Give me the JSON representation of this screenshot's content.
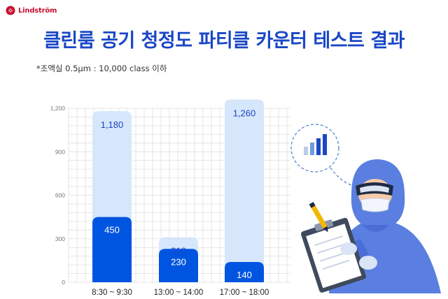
{
  "brand": {
    "name": "Lindström",
    "color": "#c8102e"
  },
  "title": "클린룸 공기 청정도 파티클 카운터 테스트 결과",
  "note": "*조액실 0.5μm : 10,000 class 이하",
  "colors": {
    "title": "#1a47c6",
    "bar_light": "#d6e6fb",
    "bar_dark": "#0055e0",
    "grid": "#e6e6e6"
  },
  "chart_data": {
    "type": "bar",
    "categories": [
      "8:30 ~ 9:30",
      "13:00 ~ 14:00",
      "17:00 ~ 18:00"
    ],
    "series": [
      {
        "values": [
          1180,
          310,
          1260
        ]
      },
      {
        "values": [
          450,
          230,
          140
        ]
      }
    ],
    "data_labels": [
      [
        "1,180",
        "310",
        "1,260"
      ],
      [
        "450",
        "230",
        "140"
      ]
    ],
    "yticks": [
      0,
      300,
      600,
      900,
      1200
    ],
    "ytick_labels": [
      "0",
      "300",
      "600",
      "900",
      "1,200"
    ],
    "ylim": [
      0,
      1200
    ],
    "grid": true,
    "xlabel": "",
    "ylabel": ""
  },
  "illustration": {
    "icon": "scientist-with-clipboard-icon",
    "thought_icon": "bar-chart-icon"
  }
}
